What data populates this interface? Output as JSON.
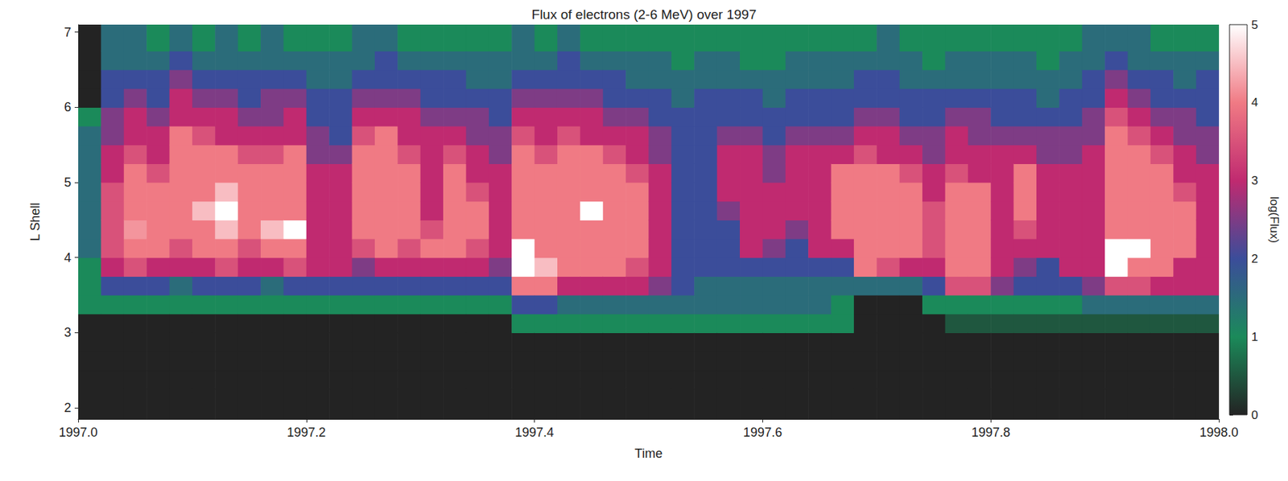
{
  "chart_data": {
    "type": "heatmap",
    "title": "Flux of electrons (2-6 MeV) over 1997",
    "x_label": "Time",
    "y_label": "L Shell",
    "xlim": [
      1997.0,
      1998.0
    ],
    "xticks": [
      {
        "value": 1997.0,
        "label": "1997.0"
      },
      {
        "value": 1997.2,
        "label": "1997.2"
      },
      {
        "value": 1997.4,
        "label": "1997.4"
      },
      {
        "value": 1997.6,
        "label": "1997.6"
      },
      {
        "value": 1997.8,
        "label": "1997.8"
      },
      {
        "value": 1998.0,
        "label": "1998.0"
      }
    ],
    "ylim": [
      1.85,
      7.1
    ],
    "yticks": [
      2,
      3,
      4,
      5,
      6,
      7
    ],
    "grid": false,
    "x_bins": [
      1997.0,
      1997.02,
      1997.04,
      1997.06,
      1997.08,
      1997.1,
      1997.12,
      1997.14,
      1997.16,
      1997.18,
      1997.2,
      1997.22,
      1997.24,
      1997.26,
      1997.28,
      1997.3,
      1997.32,
      1997.34,
      1997.36,
      1997.38,
      1997.4,
      1997.42,
      1997.44,
      1997.46,
      1997.48,
      1997.5,
      1997.52,
      1997.54,
      1997.56,
      1997.58,
      1997.6,
      1997.62,
      1997.64,
      1997.66,
      1997.68,
      1997.7,
      1997.72,
      1997.74,
      1997.76,
      1997.78,
      1997.8,
      1997.82,
      1997.84,
      1997.86,
      1997.88,
      1997.9,
      1997.92,
      1997.94,
      1997.96,
      1997.98,
      1998.0
    ],
    "y_bins": [
      1.85,
      2.25,
      2.5,
      2.75,
      3.0,
      3.25,
      3.5,
      3.75,
      4.0,
      4.25,
      4.5,
      4.75,
      5.0,
      5.25,
      5.5,
      5.75,
      6.0,
      6.25,
      6.5,
      6.75,
      7.1
    ],
    "values": [
      [
        0,
        0,
        0,
        0,
        0,
        1,
        1,
        1,
        1.5,
        1.5,
        1.5,
        1.5,
        1.5,
        1.5,
        1.5,
        1,
        0,
        0,
        0,
        0
      ],
      [
        0,
        0,
        0,
        0,
        0,
        1,
        2,
        3,
        3.5,
        3.5,
        3.5,
        3.5,
        3,
        3,
        2.5,
        2.5,
        2,
        2,
        1.5,
        1.5
      ],
      [
        0,
        0,
        0,
        0,
        0,
        1,
        2,
        3.5,
        4,
        4.2,
        4,
        4,
        4,
        3.5,
        3,
        3,
        2.5,
        2,
        1.5,
        1.5
      ],
      [
        0,
        0,
        0,
        0,
        0,
        1,
        2,
        3,
        4,
        4,
        4,
        4,
        3.5,
        3,
        3,
        2.5,
        2,
        2,
        1.5,
        1
      ],
      [
        0,
        0,
        0,
        0,
        0,
        1,
        1.5,
        3,
        3.5,
        4,
        4,
        4,
        4,
        4,
        4,
        3,
        3,
        2.5,
        2,
        1.5
      ],
      [
        0,
        0,
        0,
        0,
        0,
        1,
        2,
        3,
        4,
        4,
        4.5,
        4,
        4,
        4,
        3.5,
        3,
        2.5,
        2,
        1.5,
        1
      ],
      [
        0,
        0,
        0,
        0,
        0,
        1,
        2,
        3.5,
        4,
        4.5,
        5,
        4.5,
        4,
        4,
        3,
        3,
        2.5,
        2,
        1.5,
        1.5
      ],
      [
        0,
        0,
        0,
        0,
        0,
        1,
        2,
        3,
        3.5,
        4,
        4,
        4,
        4,
        3.5,
        3,
        2.5,
        2,
        2,
        1.5,
        1
      ],
      [
        0,
        0,
        0,
        0,
        0,
        1,
        1.5,
        3,
        4,
        4.5,
        4,
        4,
        4,
        3.5,
        3,
        2.5,
        2.5,
        2,
        1.5,
        1.5
      ],
      [
        0,
        0,
        0,
        0,
        0,
        1,
        2,
        3.5,
        4,
        5,
        4,
        4,
        4,
        4,
        3,
        3,
        2.5,
        2,
        1.5,
        1
      ],
      [
        0,
        0,
        0,
        0,
        0,
        1,
        2,
        3,
        3,
        3,
        3,
        3,
        3,
        2.5,
        2.5,
        2,
        2,
        1.5,
        1.5,
        1
      ],
      [
        0,
        0,
        0,
        0,
        0,
        1,
        2,
        3,
        3,
        3,
        3,
        3,
        3,
        2.5,
        2,
        2,
        2,
        1.5,
        1.5,
        1
      ],
      [
        0,
        0,
        0,
        0,
        0,
        1,
        2,
        2.5,
        3.5,
        4,
        4,
        4,
        4,
        4,
        3.5,
        3,
        2.5,
        2,
        1.5,
        1.5
      ],
      [
        0,
        0,
        0,
        0,
        0,
        1,
        2,
        3,
        4,
        4,
        4,
        4,
        4,
        4,
        4,
        3,
        2.5,
        2,
        2,
        1.5
      ],
      [
        0,
        0,
        0,
        0,
        0,
        1,
        2,
        3,
        3.5,
        4,
        4,
        4,
        4,
        3.5,
        3,
        3,
        2.5,
        2,
        1.5,
        1
      ],
      [
        0,
        0,
        0,
        0,
        0,
        1,
        2,
        3,
        4,
        3.5,
        3,
        3,
        3,
        3,
        3,
        2.5,
        2,
        2,
        1.5,
        1
      ],
      [
        0,
        0,
        0,
        0,
        0,
        1,
        2,
        3,
        4,
        4,
        4,
        4,
        4,
        3.5,
        3,
        2.5,
        2,
        2,
        1.5,
        1
      ],
      [
        0,
        0,
        0,
        0,
        0,
        1,
        2,
        3,
        3.5,
        4,
        4,
        3.5,
        3,
        3,
        2.5,
        2.5,
        2,
        1.5,
        1.5,
        1
      ],
      [
        0,
        0,
        0,
        0,
        0,
        1,
        2,
        2.5,
        3,
        3,
        3,
        3,
        3,
        2.5,
        2.5,
        2,
        2,
        1.5,
        1.5,
        1
      ],
      [
        0,
        0,
        0,
        0,
        1,
        2,
        4,
        5,
        5,
        4,
        4,
        4,
        4,
        4,
        3.5,
        3,
        2.5,
        2,
        1.5,
        1.5
      ],
      [
        0,
        0,
        0,
        0,
        1,
        2,
        4,
        4.5,
        4,
        4,
        4,
        4,
        4,
        3.5,
        3,
        3,
        2.5,
        2,
        1.5,
        1
      ],
      [
        0,
        0,
        0,
        0,
        1,
        1.5,
        3,
        4,
        4,
        4,
        4,
        4,
        4,
        4,
        3.5,
        3,
        2.5,
        2,
        2,
        1.5
      ],
      [
        0,
        0,
        0,
        0,
        1,
        1.5,
        3,
        4,
        4,
        4,
        5,
        4,
        4,
        4,
        3,
        3,
        2.5,
        2,
        1.5,
        1
      ],
      [
        0,
        0,
        0,
        0,
        1,
        1.5,
        3,
        4,
        4,
        4,
        4,
        4,
        4,
        3.5,
        3,
        2.5,
        2,
        2,
        1.5,
        1
      ],
      [
        0,
        0,
        0,
        0,
        1,
        1.5,
        3,
        3.5,
        4,
        4,
        4,
        4,
        3.5,
        3,
        3,
        2.5,
        2,
        1.5,
        1.5,
        1
      ],
      [
        0,
        0,
        0,
        0,
        1,
        1.5,
        2.5,
        3,
        3,
        3,
        3,
        3,
        3,
        2.5,
        2.5,
        2,
        2,
        1.5,
        1.5,
        1
      ],
      [
        0,
        0,
        0,
        0,
        1,
        1.5,
        2,
        2,
        2,
        2,
        2,
        2,
        2,
        2,
        2,
        2,
        1.5,
        1.5,
        1,
        1
      ],
      [
        0,
        0,
        0,
        0,
        1,
        1.5,
        1.5,
        2,
        2,
        2,
        2,
        2,
        2,
        2,
        2,
        2,
        2,
        1.5,
        1.5,
        1
      ],
      [
        0,
        0,
        0,
        0,
        1,
        1.5,
        1.5,
        2,
        2,
        2,
        2.5,
        3,
        3,
        3,
        2.5,
        2,
        2,
        1.5,
        1.5,
        1
      ],
      [
        0,
        0,
        0,
        0,
        1,
        1.5,
        1.5,
        2,
        3,
        3,
        3,
        3,
        3,
        3,
        2.5,
        2,
        2,
        1.5,
        1,
        1
      ],
      [
        0,
        0,
        0,
        0,
        1,
        1.5,
        1.5,
        2,
        2.5,
        3,
        3,
        3,
        2.5,
        2.5,
        2,
        2,
        1.5,
        1.5,
        1,
        1
      ],
      [
        0,
        0,
        0,
        0,
        1,
        1.5,
        1.5,
        2,
        2,
        2.5,
        3,
        3,
        3,
        3,
        2.5,
        2,
        2,
        1.5,
        1.5,
        1
      ],
      [
        0,
        0,
        0,
        0,
        1,
        1.5,
        1.5,
        2,
        3,
        3,
        3,
        3,
        3,
        3,
        2.5,
        2,
        2,
        1.5,
        1.5,
        1
      ],
      [
        0,
        0,
        0,
        0,
        1,
        1,
        1.5,
        2,
        3,
        4,
        4,
        4,
        4,
        3,
        2.5,
        2,
        2,
        1.5,
        1.5,
        1
      ],
      [
        0,
        0,
        0,
        0,
        0,
        0,
        1.5,
        4,
        4,
        4,
        4,
        4,
        4,
        3.5,
        3,
        2.5,
        2,
        2,
        1.5,
        1
      ],
      [
        0,
        0,
        0,
        0,
        0,
        0,
        1.5,
        3.5,
        4,
        4,
        4,
        4,
        4,
        3,
        3,
        2.5,
        2,
        2,
        1.5,
        1.5
      ],
      [
        0,
        0,
        0,
        0,
        0,
        0,
        1.5,
        3,
        4,
        4,
        4,
        4,
        3.5,
        3,
        2.5,
        2,
        2,
        1.5,
        1.5,
        1
      ],
      [
        0,
        0,
        0,
        0,
        0,
        1,
        2,
        3,
        3.5,
        3.5,
        3.5,
        3,
        3,
        2.5,
        2.5,
        2,
        2,
        1.5,
        1,
        1
      ],
      [
        0,
        0,
        0,
        0,
        0.5,
        1,
        3.5,
        4,
        4,
        4,
        4,
        4,
        3.5,
        3,
        3,
        2.5,
        2,
        1.5,
        1.5,
        1
      ],
      [
        0,
        0,
        0,
        0,
        0.5,
        1,
        3.5,
        4,
        4,
        4,
        4,
        4,
        3,
        3,
        2.5,
        2.5,
        2,
        1.5,
        1.5,
        1
      ],
      [
        0,
        0,
        0,
        0,
        0.5,
        1,
        2.5,
        3,
        3,
        3,
        3,
        3,
        3,
        3,
        2.5,
        2,
        2,
        1.5,
        1.5,
        1
      ],
      [
        0,
        0,
        0,
        0,
        0.5,
        1,
        2,
        2.5,
        3,
        3.5,
        4,
        4,
        4,
        3,
        2.5,
        2,
        2,
        1.5,
        1.5,
        1
      ],
      [
        0,
        0,
        0,
        0,
        0.5,
        1,
        2,
        2,
        3,
        3,
        3,
        3,
        3,
        2.5,
        2.5,
        2,
        1.5,
        1.5,
        1,
        1
      ],
      [
        0,
        0,
        0,
        0,
        0.5,
        1,
        2,
        3,
        3,
        3,
        3,
        3,
        3,
        2.5,
        2.5,
        2,
        2,
        1.5,
        1.5,
        1
      ],
      [
        0,
        0,
        0,
        0,
        0.5,
        1.5,
        2.5,
        3,
        3,
        3,
        3,
        3,
        3,
        3,
        2.5,
        2.5,
        2,
        2,
        1.5,
        1.5
      ],
      [
        0,
        0,
        0,
        0,
        0.5,
        1.5,
        3.5,
        5,
        5,
        4,
        4,
        4,
        4,
        4,
        4,
        3.5,
        3,
        2.5,
        2,
        1.5
      ],
      [
        0,
        0,
        0,
        0,
        0.5,
        1.5,
        3.5,
        4,
        5,
        4,
        4,
        4,
        4,
        4,
        3.5,
        3,
        2.5,
        2,
        1.5,
        1.5
      ],
      [
        0,
        0,
        0,
        0,
        0.5,
        1.5,
        3,
        4,
        4,
        4,
        4,
        4,
        4,
        3.5,
        3,
        2.5,
        2,
        2,
        1.5,
        1
      ],
      [
        0,
        0,
        0,
        0,
        0.5,
        1.5,
        3,
        3,
        4,
        4,
        4,
        3.5,
        3,
        3,
        2.5,
        2.5,
        2,
        1.5,
        1.5,
        1
      ],
      [
        0,
        0,
        0,
        0,
        0.5,
        1.5,
        3,
        3,
        3,
        3,
        3,
        3,
        3,
        2.5,
        2.5,
        2,
        2,
        2,
        1.5,
        1
      ]
    ],
    "colorbar": {
      "label": "log(Flux)",
      "lim": [
        0,
        5
      ],
      "ticks": [
        0,
        1,
        2,
        3,
        4,
        5
      ]
    }
  }
}
